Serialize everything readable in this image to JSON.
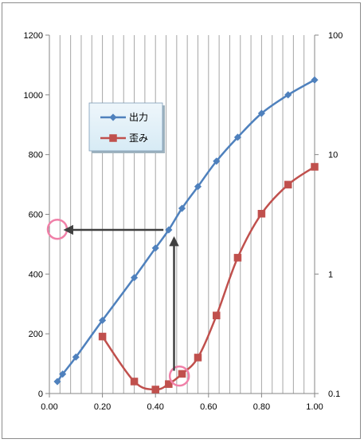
{
  "chart_data": {
    "type": "line",
    "x_axis": {
      "min": 0,
      "max": 1.0,
      "major_step": 0.2,
      "minor_step": 0.04,
      "tick_labels": [
        "0.00",
        "0.20",
        "0.40",
        "0.60",
        "0.80",
        "1.00"
      ]
    },
    "y_left": {
      "min": 0,
      "max": 1200,
      "step": 200,
      "tick_labels": [
        "0",
        "200",
        "400",
        "600",
        "800",
        "1000",
        "1200"
      ]
    },
    "y_right": {
      "scale": "log",
      "min": 0.1,
      "max": 100,
      "tick_labels": [
        "0.1",
        "1",
        "10",
        "100"
      ]
    },
    "grid": "vertical",
    "legend": {
      "placement": "upper-left inside plot"
    },
    "series": [
      {
        "name": "出力",
        "axis": "left",
        "color": "#4f81bd",
        "marker": "diamond",
        "x": [
          0.03,
          0.05,
          0.1,
          0.2,
          0.32,
          0.4,
          0.45,
          0.5,
          0.56,
          0.63,
          0.71,
          0.8,
          0.9,
          1.0
        ],
        "y": [
          40,
          65,
          122,
          245,
          388,
          487,
          548,
          620,
          693,
          778,
          858,
          938,
          1000,
          1050
        ]
      },
      {
        "name": "歪み",
        "axis": "right",
        "color": "#c0504d",
        "marker": "square",
        "x": [
          0.2,
          0.32,
          0.4,
          0.45,
          0.5,
          0.56,
          0.63,
          0.71,
          0.8,
          0.9,
          1.0
        ],
        "y": [
          0.3,
          0.126,
          0.108,
          0.12,
          0.146,
          0.2,
          0.45,
          1.37,
          3.2,
          5.6,
          7.9
        ]
      }
    ],
    "annotations": [
      {
        "type": "circle",
        "color": "#f080a8",
        "x": 0.03,
        "axis": "left",
        "y": 550
      },
      {
        "type": "circle",
        "color": "#f080a8",
        "x": 0.49,
        "axis": "right",
        "y": 0.14
      },
      {
        "type": "arrow",
        "color": "#404040",
        "from": {
          "x": 0.47,
          "axis": "right",
          "y": 0.155
        },
        "to": {
          "x": 0.47,
          "axis": "left",
          "y": 520
        }
      },
      {
        "type": "arrow",
        "color": "#404040",
        "from": {
          "x": 0.43,
          "axis": "left",
          "y": 548
        },
        "to": {
          "x": 0.06,
          "axis": "left",
          "y": 548
        }
      }
    ]
  }
}
